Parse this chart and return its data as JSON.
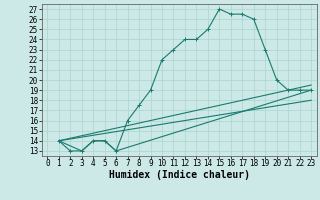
{
  "xlabel": "Humidex (Indice chaleur)",
  "background_color": "#cce9e7",
  "grid_color": "#aad4d0",
  "line_color": "#1a7a6e",
  "xlim": [
    -0.5,
    23.5
  ],
  "ylim": [
    12.5,
    27.5
  ],
  "xticks": [
    0,
    1,
    2,
    3,
    4,
    5,
    6,
    7,
    8,
    9,
    10,
    11,
    12,
    13,
    14,
    15,
    16,
    17,
    18,
    19,
    20,
    21,
    22,
    23
  ],
  "yticks": [
    13,
    14,
    15,
    16,
    17,
    18,
    19,
    20,
    21,
    22,
    23,
    24,
    25,
    26,
    27
  ],
  "line1_x": [
    1,
    2,
    3,
    4,
    5,
    6,
    7,
    8,
    9,
    10,
    11,
    12,
    13,
    14,
    15,
    16,
    17,
    18,
    19,
    20,
    21,
    22,
    23
  ],
  "line1_y": [
    14,
    13,
    13,
    14,
    14,
    13,
    16,
    17.5,
    19,
    22,
    23,
    24,
    24,
    25,
    27,
    26.5,
    26.5,
    26,
    23,
    20,
    19,
    19,
    19
  ],
  "line2_x": [
    1,
    2,
    3,
    4,
    5,
    6,
    23
  ],
  "line2_y": [
    14,
    13.5,
    13,
    14,
    14,
    13,
    19
  ],
  "line3_x": [
    1,
    23
  ],
  "line3_y": [
    14,
    18
  ],
  "line4_x": [
    1,
    23
  ],
  "line4_y": [
    14,
    19.5
  ],
  "figsize": [
    3.2,
    2.0
  ],
  "dpi": 100,
  "tick_fontsize": 5.5,
  "label_fontsize": 7
}
